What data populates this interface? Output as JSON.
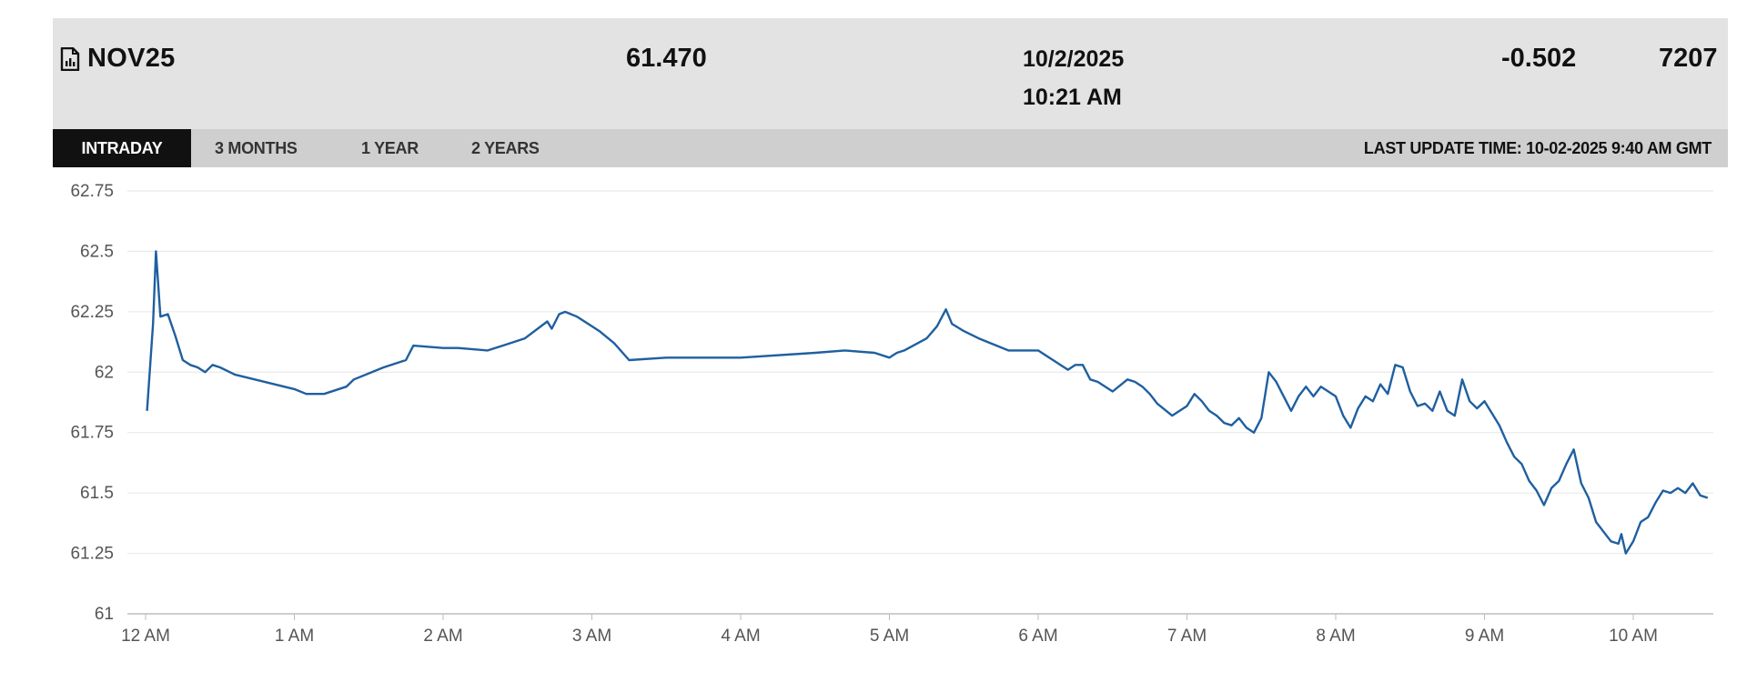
{
  "header": {
    "symbol": "NOV25",
    "symbol_icon": "document-chart-icon",
    "price": "61.470",
    "date": "10/2/2025",
    "time": "10:21 AM",
    "change": "-0.502",
    "volume": "7207"
  },
  "tabs": [
    {
      "label": "INTRADAY",
      "active": true
    },
    {
      "label": "3 MONTHS",
      "active": false
    },
    {
      "label": "1 YEAR",
      "active": false
    },
    {
      "label": "2 YEARS",
      "active": false
    }
  ],
  "last_update": "LAST UPDATE TIME: 10-02-2025 9:40 AM GMT",
  "colors": {
    "line": "#1f5fa0",
    "grid": "#e6e6e6",
    "active_tab": "#111111",
    "header_bg": "#e3e3e3",
    "tab_bar_bg": "#cfcfcf"
  },
  "chart_data": {
    "type": "line",
    "title": "",
    "xlabel": "",
    "ylabel": "",
    "ylim": [
      61,
      62.75
    ],
    "xlim": [
      0,
      10.6
    ],
    "grid": true,
    "y_ticks": [
      "61",
      "61.25",
      "61.5",
      "61.75",
      "62",
      "62.25",
      "62.5",
      "62.75"
    ],
    "x_ticks": [
      {
        "value": 0,
        "label": "12 AM"
      },
      {
        "value": 1,
        "label": "1 AM"
      },
      {
        "value": 2,
        "label": "2 AM"
      },
      {
        "value": 3,
        "label": "3 AM"
      },
      {
        "value": 4,
        "label": "4 AM"
      },
      {
        "value": 5,
        "label": "5 AM"
      },
      {
        "value": 6,
        "label": "6 AM"
      },
      {
        "value": 7,
        "label": "7 AM"
      },
      {
        "value": 8,
        "label": "8 AM"
      },
      {
        "value": 9,
        "label": "9 AM"
      },
      {
        "value": 10,
        "label": "10 AM"
      }
    ],
    "series": [
      {
        "x": [
          0.01,
          0.05,
          0.07,
          0.1,
          0.15,
          0.2,
          0.25,
          0.3,
          0.35,
          0.4,
          0.45,
          0.5,
          0.6,
          0.8,
          1.0,
          1.08,
          1.2,
          1.35,
          1.4,
          1.6,
          1.75,
          1.8,
          2.0,
          2.1,
          2.3,
          2.4,
          2.55,
          2.7,
          2.73,
          2.78,
          2.82,
          2.9,
          3.0,
          3.05,
          3.15,
          3.25,
          3.5,
          4.0,
          4.5,
          4.7,
          4.9,
          5.0,
          5.05,
          5.1,
          5.25,
          5.32,
          5.38,
          5.42,
          5.5,
          5.6,
          5.8,
          6.0,
          6.1,
          6.2,
          6.25,
          6.3,
          6.35,
          6.4,
          6.5,
          6.6,
          6.65,
          6.7,
          6.75,
          6.8,
          6.9,
          7.0,
          7.05,
          7.1,
          7.15,
          7.2,
          7.25,
          7.3,
          7.35,
          7.4,
          7.45,
          7.5,
          7.55,
          7.6,
          7.65,
          7.7,
          7.75,
          7.8,
          7.85,
          7.9,
          7.95,
          8.0,
          8.05,
          8.1,
          8.15,
          8.2,
          8.25,
          8.3,
          8.35,
          8.4,
          8.45,
          8.5,
          8.55,
          8.6,
          8.65,
          8.7,
          8.75,
          8.8,
          8.85,
          8.9,
          8.95,
          9.0,
          9.05,
          9.1,
          9.15,
          9.2,
          9.25,
          9.3,
          9.35,
          9.4,
          9.45,
          9.5,
          9.55,
          9.6,
          9.65,
          9.7,
          9.75,
          9.8,
          9.85,
          9.9,
          9.92,
          9.95,
          10.0,
          10.05,
          10.1,
          10.15,
          10.2,
          10.25,
          10.3,
          10.35,
          10.4,
          10.45,
          10.5
        ],
        "y": [
          61.84,
          62.2,
          62.5,
          62.23,
          62.24,
          62.15,
          62.05,
          62.03,
          62.02,
          62.0,
          62.03,
          62.02,
          61.99,
          61.96,
          61.93,
          61.91,
          61.91,
          61.94,
          61.97,
          62.02,
          62.05,
          62.11,
          62.1,
          62.1,
          62.09,
          62.11,
          62.14,
          62.21,
          62.18,
          62.24,
          62.25,
          62.23,
          62.19,
          62.17,
          62.12,
          62.05,
          62.06,
          62.06,
          62.08,
          62.09,
          62.08,
          62.06,
          62.08,
          62.09,
          62.14,
          62.19,
          62.26,
          62.2,
          62.17,
          62.14,
          62.09,
          62.09,
          62.05,
          62.01,
          62.03,
          62.03,
          61.97,
          61.96,
          61.92,
          61.97,
          61.96,
          61.94,
          61.91,
          61.87,
          61.82,
          61.86,
          61.91,
          61.88,
          61.84,
          61.82,
          61.79,
          61.78,
          61.81,
          61.77,
          61.75,
          61.81,
          62.0,
          61.96,
          61.9,
          61.84,
          61.9,
          61.94,
          61.9,
          61.94,
          61.92,
          61.9,
          61.82,
          61.77,
          61.85,
          61.9,
          61.88,
          61.95,
          61.91,
          62.03,
          62.02,
          61.92,
          61.86,
          61.87,
          61.84,
          61.92,
          61.84,
          61.82,
          61.97,
          61.88,
          61.85,
          61.88,
          61.83,
          61.78,
          61.71,
          61.65,
          61.62,
          61.55,
          61.51,
          61.45,
          61.52,
          61.55,
          61.62,
          61.68,
          61.54,
          61.48,
          61.38,
          61.34,
          61.3,
          61.29,
          61.33,
          61.25,
          61.3,
          61.38,
          61.4,
          61.46,
          61.51,
          61.5,
          61.52,
          61.5,
          61.54,
          61.49,
          61.48
        ]
      }
    ]
  }
}
